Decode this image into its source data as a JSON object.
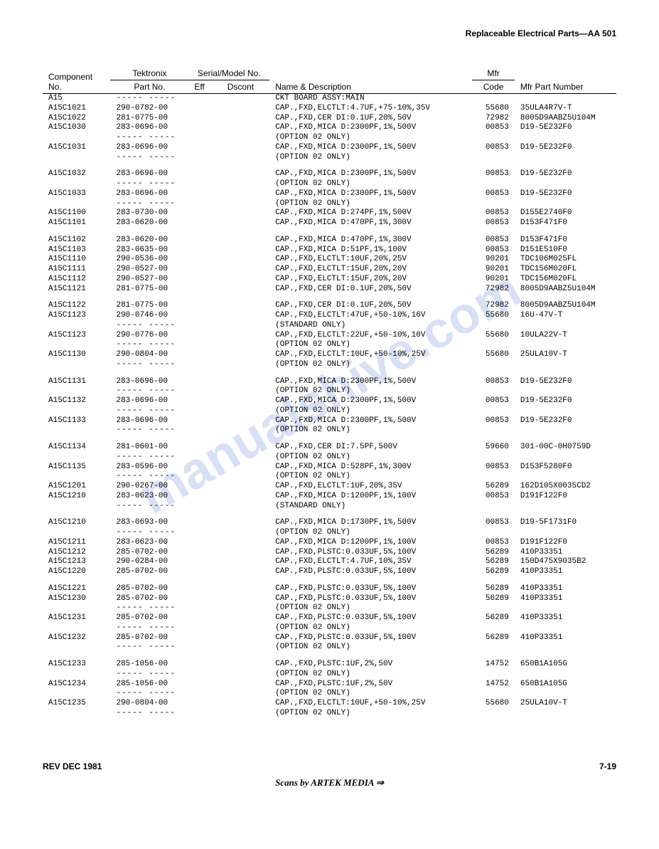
{
  "header": {
    "title": "Replaceable Electrical Parts—AA 501"
  },
  "columns": {
    "comp": "Component No.",
    "tekprefix": "Tektronix",
    "part": "Part No.",
    "serialprefix": "Serial/Model No.",
    "eff": "Eff",
    "dscont": "Dscont",
    "desc": "Name & Description",
    "mfrprefix": "Mfr",
    "code": "Code",
    "mfrpart": "Mfr Part Number"
  },
  "watermark": "manualshive.com",
  "rows": [
    {
      "c": "A15",
      "p": "----- -----",
      "d": "CKT BOARD ASSY:MAIN",
      "mc": "",
      "mp": ""
    },
    {
      "c": "A15C1021",
      "p": "290-0782-00",
      "d": "CAP.,FXD,ELCTLT:4.7UF,+75-10%,35V",
      "mc": "55680",
      "mp": "35ULA4R7V-T"
    },
    {
      "c": "A15C1022",
      "p": "281-0775-00",
      "d": "CAP.,FXD,CER DI:0.1UF,20%,50V",
      "mc": "72982",
      "mp": "8005D9AABZ5U104M"
    },
    {
      "c": "A15C1030",
      "p": "283-0696-00",
      "d": "CAP.,FXD,MICA D:2300PF,1%,500V",
      "mc": "00853",
      "mp": "D19-5E232F0"
    },
    {
      "c": "",
      "p": "----- -----",
      "d": "(OPTION 02 ONLY)",
      "mc": "",
      "mp": ""
    },
    {
      "c": "A15C1031",
      "p": "283-0696-00",
      "d": "CAP.,FXD,MICA D:2300PF,1%,500V",
      "mc": "00853",
      "mp": "D19-5E232F0"
    },
    {
      "c": "",
      "p": "----- -----",
      "d": "(OPTION 02 ONLY)",
      "mc": "",
      "mp": ""
    },
    {
      "sp": true
    },
    {
      "c": "A15C1032",
      "p": "283-0696-00",
      "d": "CAP.,FXD,MICA D:2300PF,1%,500V",
      "mc": "00853",
      "mp": "D19-5E232F0"
    },
    {
      "c": "",
      "p": "----- -----",
      "d": "(OPTION 02 ONLY)",
      "mc": "",
      "mp": ""
    },
    {
      "c": "A15C1033",
      "p": "283-0696-00",
      "d": "CAP.,FXD,MICA D:2300PF,1%,500V",
      "mc": "00853",
      "mp": "D19-5E232F0"
    },
    {
      "c": "",
      "p": "----- -----",
      "d": "(OPTION 02 ONLY)",
      "mc": "",
      "mp": ""
    },
    {
      "c": "A15C1100",
      "p": "283-0730-00",
      "d": "CAP.,FXD,MICA D:274PF,1%,500V",
      "mc": "00853",
      "mp": "D155E2740F0"
    },
    {
      "c": "A15C1101",
      "p": "283-0620-00",
      "d": "CAP.,FXD,MICA D:470PF,1%,300V",
      "mc": "00853",
      "mp": "D153F471F0"
    },
    {
      "sp": true
    },
    {
      "c": "A15C1102",
      "p": "283-0620-00",
      "d": "CAP.,FXD,MICA D:470PF,1%,300V",
      "mc": "00853",
      "mp": "D153F471F0"
    },
    {
      "c": "A15C1103",
      "p": "283-0635-00",
      "d": "CAP.,FXD,MICA D:51PF,1%,100V",
      "mc": "00853",
      "mp": "D151E510F0"
    },
    {
      "c": "A15C1110",
      "p": "290-0536-00",
      "d": "CAP.,FXD,ELCTLT:10UF,20%,25V",
      "mc": "90201",
      "mp": "TDC106M025FL"
    },
    {
      "c": "A15C1111",
      "p": "290-0527-00",
      "d": "CAP.,FXD,ELCTLT:15UF,20%,20V",
      "mc": "90201",
      "mp": "TDC156M020FL"
    },
    {
      "c": "A15C1112",
      "p": "290-0527-00",
      "d": "CAP.,FXD,ELCTLT:15UF,20%,20V",
      "mc": "90201",
      "mp": "TDC156M020FL"
    },
    {
      "c": "A15C1121",
      "p": "281-0775-00",
      "d": "CAP.,FXD,CER DI:0.1UF,20%,50V",
      "mc": "72982",
      "mp": "8005D9AABZ5U104M"
    },
    {
      "sp": true
    },
    {
      "c": "A15C1122",
      "p": "281-0775-00",
      "d": "CAP.,FXD,CER DI:0.1UF,20%,50V",
      "mc": "72982",
      "mp": "8005D9AABZ5U104M"
    },
    {
      "c": "A15C1123",
      "p": "290-0746-00",
      "d": "CAP.,FXD,ELCTLT:47UF,+50-10%,16V",
      "mc": "55680",
      "mp": "16U-47V-T"
    },
    {
      "c": "",
      "p": "----- -----",
      "d": "(STANDARD ONLY)",
      "mc": "",
      "mp": ""
    },
    {
      "c": "A15C1123",
      "p": "290-0776-00",
      "d": "CAP.,FXD,ELCTLT:22UF,+50-10%,10V",
      "mc": "55680",
      "mp": "10ULA22V-T"
    },
    {
      "c": "",
      "p": "----- -----",
      "d": "(OPTION 02 ONLY)",
      "mc": "",
      "mp": ""
    },
    {
      "c": "A15C1130",
      "p": "290-0804-00",
      "d": "CAP.,FXD,ELCTLT:10UF,+50-10%,25V",
      "mc": "55680",
      "mp": "25ULA10V-T"
    },
    {
      "c": "",
      "p": "----- -----",
      "d": "(OPTION 02 ONLY)",
      "mc": "",
      "mp": ""
    },
    {
      "sp": true
    },
    {
      "c": "A15C1131",
      "p": "283-0696-00",
      "d": "CAP.,FXD,MICA D:2300PF,1%,500V",
      "mc": "00853",
      "mp": "D19-5E232F0"
    },
    {
      "c": "",
      "p": "----- -----",
      "d": "(OPTION 02 ONLY)",
      "mc": "",
      "mp": ""
    },
    {
      "c": "A15C1132",
      "p": "283-0696-00",
      "d": "CAP.,FXD,MICA D:2300PF,1%,500V",
      "mc": "00853",
      "mp": "D19-5E232F0"
    },
    {
      "c": "",
      "p": "----- -----",
      "d": "(OPTION 02 ONLY)",
      "mc": "",
      "mp": ""
    },
    {
      "c": "A15C1133",
      "p": "283-0696-00",
      "d": "CAP.,FXD,MICA D:2300PF,1%,500V",
      "mc": "00853",
      "mp": "D19-5E232F0"
    },
    {
      "c": "",
      "p": "----- -----",
      "d": "(OPTION 02 ONLY)",
      "mc": "",
      "mp": ""
    },
    {
      "sp": true
    },
    {
      "c": "A15C1134",
      "p": "281-0601-00",
      "d": "CAP.,FXD,CER DI:7.5PF,500V",
      "mc": "59660",
      "mp": "301-00C-0H0759D"
    },
    {
      "c": "",
      "p": "----- -----",
      "d": "(OPTION 02 ONLY)",
      "mc": "",
      "mp": ""
    },
    {
      "c": "A15C1135",
      "p": "283-0596-00",
      "d": "CAP.,FXD,MICA D:528PF,1%,300V",
      "mc": "00853",
      "mp": "D153F5280F0"
    },
    {
      "c": "",
      "p": "----- -----",
      "d": "(OPTION 02 ONLY)",
      "mc": "",
      "mp": ""
    },
    {
      "c": "A15C1201",
      "p": "290-0267-00",
      "d": "CAP.,FXD,ELCTLT:1UF,20%,35V",
      "mc": "56289",
      "mp": "162D105X0035CD2"
    },
    {
      "c": "A15C1210",
      "p": "283-0623-00",
      "d": "CAP.,FXD,MICA D:1200PF,1%,100V",
      "mc": "00853",
      "mp": "D191F122F0"
    },
    {
      "c": "",
      "p": "----- -----",
      "d": "(STANDARD ONLY)",
      "mc": "",
      "mp": ""
    },
    {
      "sp": true
    },
    {
      "c": "A15C1210",
      "p": "283-0693-00",
      "d": "CAP.,FXD,MICA D:1730PF,1%,500V",
      "mc": "00853",
      "mp": "D19-5F1731F0"
    },
    {
      "c": "",
      "p": "----- -----",
      "d": "(OPTION 02 ONLY)",
      "mc": "",
      "mp": ""
    },
    {
      "c": "A15C1211",
      "p": "283-0623-00",
      "d": "CAP.,FXD,MICA D:1200PF,1%,100V",
      "mc": "00853",
      "mp": "D191F122F0"
    },
    {
      "c": "A15C1212",
      "p": "285-0702-00",
      "d": "CAP.,FXD,PLSTC:0.033UF,5%,100V",
      "mc": "56289",
      "mp": "410P33351"
    },
    {
      "c": "A15C1213",
      "p": "290-0284-00",
      "d": "CAP.,FXD,ELCTLT:4.7UF,10%,35V",
      "mc": "56289",
      "mp": "150D475X9035B2"
    },
    {
      "c": "A15C1220",
      "p": "285-0702-00",
      "d": "CAP.,FXD,PLSTC:0.033UF,5%,100V",
      "mc": "56289",
      "mp": "410P33351"
    },
    {
      "sp": true
    },
    {
      "c": "A15C1221",
      "p": "285-0702-00",
      "d": "CAP.,FXD,PLSTC:0.033UF,5%,100V",
      "mc": "56289",
      "mp": "410P33351"
    },
    {
      "c": "A15C1230",
      "p": "285-0702-00",
      "d": "CAP.,FXD,PLSTC:0.033UF,5%,100V",
      "mc": "56289",
      "mp": "410P33351"
    },
    {
      "c": "",
      "p": "----- -----",
      "d": "(OPTION 02 ONLY)",
      "mc": "",
      "mp": ""
    },
    {
      "c": "A15C1231",
      "p": "285-0702-00",
      "d": "CAP.,FXD,PLSTC:0.033UF,5%,100V",
      "mc": "56289",
      "mp": "410P33351"
    },
    {
      "c": "",
      "p": "----- -----",
      "d": "(OPTION 02 ONLY)",
      "mc": "",
      "mp": ""
    },
    {
      "c": "A15C1232",
      "p": "285-0702-00",
      "d": "CAP.,FXD,PLSTC:0.033UF,5%,100V",
      "mc": "56289",
      "mp": "410P33351"
    },
    {
      "c": "",
      "p": "----- -----",
      "d": "(OPTION 02 ONLY)",
      "mc": "",
      "mp": ""
    },
    {
      "sp": true
    },
    {
      "c": "A15C1233",
      "p": "285-1056-00",
      "d": "CAP.,FXD,PLSTC:1UF,2%,50V",
      "mc": "14752",
      "mp": "650B1A105G"
    },
    {
      "c": "",
      "p": "----- -----",
      "d": "(OPTION 02 ONLY)",
      "mc": "",
      "mp": ""
    },
    {
      "c": "A15C1234",
      "p": "285-1056-00",
      "d": "CAP.,FXD,PLSTC:1UF,2%,50V",
      "mc": "14752",
      "mp": "650B1A105G"
    },
    {
      "c": "",
      "p": "----- -----",
      "d": "(OPTION 02 ONLY)",
      "mc": "",
      "mp": ""
    },
    {
      "c": "A15C1235",
      "p": "290-0804-00",
      "d": "CAP.,FXD,ELCTLT:10UF,+50-10%,25V",
      "mc": "55680",
      "mp": "25ULA10V-T"
    },
    {
      "c": "",
      "p": "----- -----",
      "d": "(OPTION 02 ONLY)",
      "mc": "",
      "mp": ""
    }
  ],
  "footer": {
    "left": "REV DEC 1981",
    "right": "7-19",
    "center": "Scans by ARTEK MEDIA ⇒"
  }
}
